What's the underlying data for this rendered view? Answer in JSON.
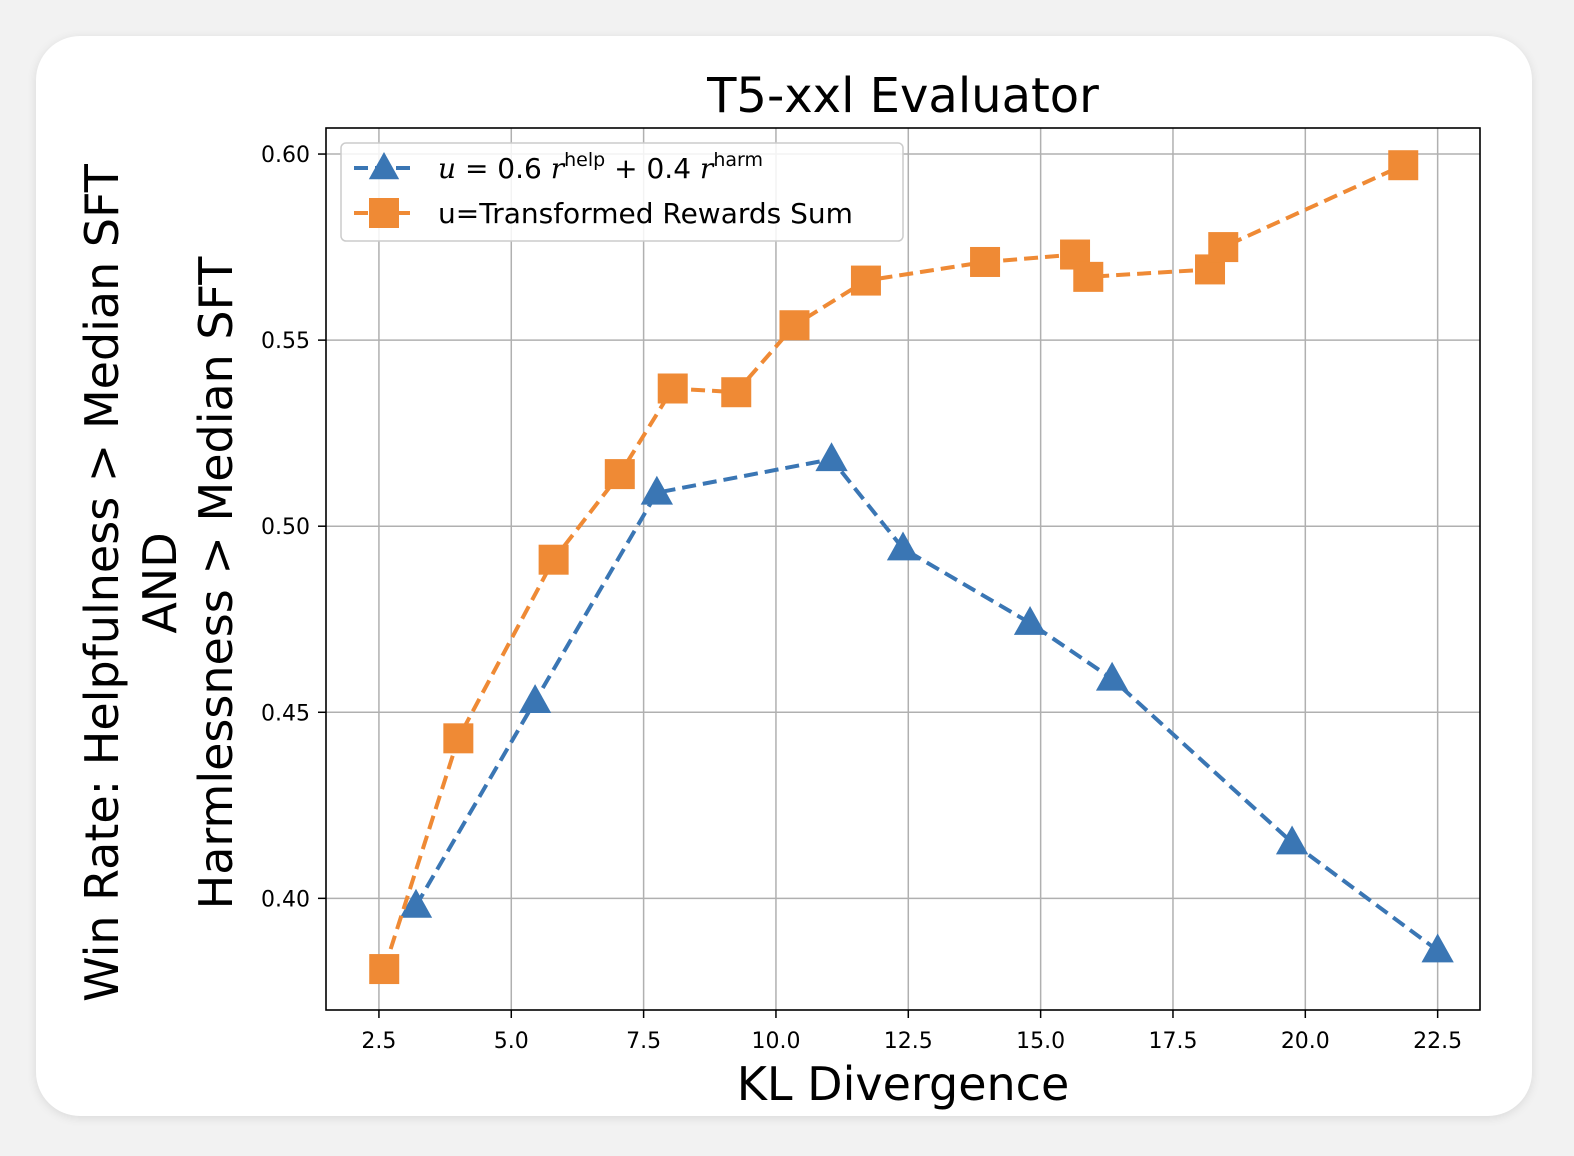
{
  "chart_data": {
    "type": "line",
    "title": "T5-xxl Evaluator",
    "xlabel": "KL Divergence",
    "ylabel_lines": [
      "Win Rate: Helpfulness > Median SFT",
      "AND",
      "Harmlessness > Median SFT"
    ],
    "xlim": [
      1.5,
      23.3
    ],
    "ylim": [
      0.37,
      0.607
    ],
    "xticks": [
      2.5,
      5.0,
      7.5,
      10.0,
      12.5,
      15.0,
      17.5,
      20.0,
      22.5
    ],
    "xtick_labels": [
      "2.5",
      "5.0",
      "7.5",
      "10.0",
      "12.5",
      "15.0",
      "17.5",
      "20.0",
      "22.5"
    ],
    "yticks": [
      0.4,
      0.45,
      0.5,
      0.55,
      0.6
    ],
    "ytick_labels": [
      "0.40",
      "0.45",
      "0.50",
      "0.55",
      "0.60"
    ],
    "grid": true,
    "legend_position": "top-left",
    "series": [
      {
        "name": "u = 0.6 r^help + 0.4 r^harm",
        "legend": {
          "u": "u",
          "eq": " = 0.6 ",
          "r1": "r",
          "sup1": "help",
          "plus": " + 0.4 ",
          "r2": "r",
          "sup2": "harm"
        },
        "marker": "triangle",
        "color": "#3a76b4",
        "x": [
          3.2,
          5.45,
          7.75,
          11.05,
          12.4,
          14.8,
          16.35,
          19.75,
          22.5
        ],
        "y": [
          0.398,
          0.453,
          0.509,
          0.518,
          0.494,
          0.474,
          0.459,
          0.415,
          0.386
        ]
      },
      {
        "name": "u=Transformed Rewards Sum",
        "marker": "square",
        "color": "#ef8a35",
        "x": [
          2.6,
          4.0,
          5.8,
          7.05,
          8.05,
          9.25,
          10.35,
          11.7,
          13.95,
          15.65,
          15.9,
          18.2,
          18.45,
          21.85
        ],
        "y": [
          0.381,
          0.443,
          0.491,
          0.514,
          0.537,
          0.536,
          0.554,
          0.566,
          0.571,
          0.573,
          0.567,
          0.569,
          0.575,
          0.597
        ]
      }
    ]
  }
}
